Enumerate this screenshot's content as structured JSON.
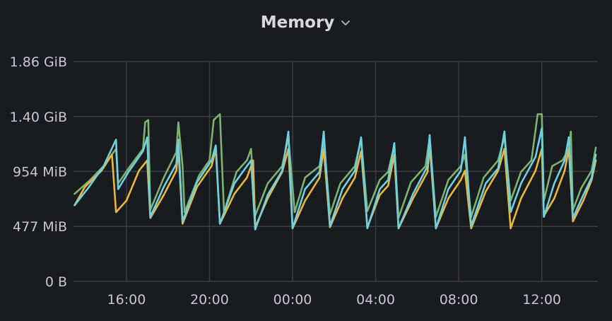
{
  "panel": {
    "title": "Memory",
    "menu_icon": "chevron-down-icon"
  },
  "colors": {
    "background": "#181b1f",
    "grid": "#3a3d43",
    "text": "#c7c7d3",
    "title": "#d8d9da"
  },
  "chart_data": {
    "type": "line",
    "title": "Memory",
    "xlabel": "",
    "ylabel": "",
    "grid": true,
    "legend": "none",
    "y_unit": "MiB",
    "ylim": [
      0,
      1907
    ],
    "y_ticks": [
      {
        "value": 0,
        "label": "0 B"
      },
      {
        "value": 477,
        "label": "477 MiB"
      },
      {
        "value": 954,
        "label": "954 MiB"
      },
      {
        "value": 1430,
        "label": "1.40 GiB"
      },
      {
        "value": 1907,
        "label": "1.86 GiB"
      }
    ],
    "x_unit": "hour",
    "xlim": [
      13.45,
      14.7
    ],
    "x_ticks": [
      {
        "value": 16,
        "label": "16:00"
      },
      {
        "value": 20,
        "label": "20:00"
      },
      {
        "value": 24,
        "label": "00:00"
      },
      {
        "value": 28,
        "label": "04:00"
      },
      {
        "value": 32,
        "label": "08:00"
      },
      {
        "value": 36,
        "label": "12:00"
      }
    ],
    "series": [
      {
        "color": "#7eb26d",
        "points": [
          [
            13.5,
            760
          ],
          [
            14.2,
            870
          ],
          [
            14.9,
            1000
          ],
          [
            15.5,
            1150
          ],
          [
            15.6,
            850
          ],
          [
            16.1,
            980
          ],
          [
            16.8,
            1150
          ],
          [
            16.9,
            1380
          ],
          [
            17.05,
            1400
          ],
          [
            17.15,
            620
          ],
          [
            17.8,
            900
          ],
          [
            18.4,
            1120
          ],
          [
            18.5,
            1380
          ],
          [
            18.7,
            1000
          ],
          [
            18.8,
            600
          ],
          [
            19.5,
            920
          ],
          [
            20.0,
            1050
          ],
          [
            20.2,
            1400
          ],
          [
            20.5,
            1450
          ],
          [
            20.7,
            600
          ],
          [
            21.3,
            950
          ],
          [
            21.8,
            1050
          ],
          [
            22.0,
            1150
          ],
          [
            22.2,
            570
          ],
          [
            22.8,
            850
          ],
          [
            23.5,
            1000
          ],
          [
            23.8,
            1250
          ],
          [
            24.1,
            600
          ],
          [
            24.6,
            900
          ],
          [
            25.3,
            1000
          ],
          [
            25.5,
            1230
          ],
          [
            25.8,
            580
          ],
          [
            26.3,
            850
          ],
          [
            27.0,
            1000
          ],
          [
            27.3,
            1230
          ],
          [
            27.6,
            610
          ],
          [
            28.2,
            880
          ],
          [
            28.6,
            950
          ],
          [
            28.9,
            1180
          ],
          [
            29.1,
            550
          ],
          [
            29.7,
            860
          ],
          [
            30.4,
            1000
          ],
          [
            30.6,
            1250
          ],
          [
            30.9,
            560
          ],
          [
            31.5,
            880
          ],
          [
            32.1,
            1000
          ],
          [
            32.3,
            1100
          ],
          [
            32.6,
            560
          ],
          [
            33.2,
            900
          ],
          [
            33.9,
            1050
          ],
          [
            34.2,
            1250
          ],
          [
            34.5,
            700
          ],
          [
            35.0,
            950
          ],
          [
            35.5,
            1050
          ],
          [
            35.8,
            1450
          ],
          [
            36.0,
            1450
          ],
          [
            36.1,
            700
          ],
          [
            36.5,
            1000
          ],
          [
            37.0,
            1050
          ],
          [
            37.3,
            1150
          ],
          [
            37.4,
            1300
          ],
          [
            37.5,
            620
          ],
          [
            37.9,
            810
          ],
          [
            38.4,
            960
          ],
          [
            38.6,
            1160
          ]
        ]
      },
      {
        "color": "#eab839",
        "points": [
          [
            13.5,
            660
          ],
          [
            14.0,
            820
          ],
          [
            14.8,
            960
          ],
          [
            15.3,
            1100
          ],
          [
            15.5,
            600
          ],
          [
            16.0,
            700
          ],
          [
            16.6,
            960
          ],
          [
            17.0,
            1050
          ],
          [
            17.15,
            550
          ],
          [
            17.8,
            750
          ],
          [
            18.4,
            960
          ],
          [
            18.5,
            1150
          ],
          [
            18.7,
            500
          ],
          [
            19.4,
            820
          ],
          [
            20.1,
            1000
          ],
          [
            20.3,
            1150
          ],
          [
            20.5,
            500
          ],
          [
            21.2,
            760
          ],
          [
            21.8,
            900
          ],
          [
            22.1,
            1050
          ],
          [
            22.2,
            470
          ],
          [
            22.8,
            720
          ],
          [
            23.5,
            950
          ],
          [
            23.8,
            1150
          ],
          [
            24.0,
            460
          ],
          [
            24.6,
            700
          ],
          [
            25.3,
            900
          ],
          [
            25.5,
            1150
          ],
          [
            25.8,
            470
          ],
          [
            26.4,
            720
          ],
          [
            27.0,
            900
          ],
          [
            27.3,
            1130
          ],
          [
            27.6,
            470
          ],
          [
            28.2,
            750
          ],
          [
            28.6,
            830
          ],
          [
            28.9,
            1100
          ],
          [
            29.1,
            460
          ],
          [
            29.8,
            720
          ],
          [
            30.5,
            950
          ],
          [
            30.6,
            1180
          ],
          [
            30.9,
            460
          ],
          [
            31.5,
            720
          ],
          [
            32.1,
            880
          ],
          [
            32.3,
            960
          ],
          [
            32.6,
            460
          ],
          [
            33.3,
            780
          ],
          [
            33.9,
            960
          ],
          [
            34.2,
            1150
          ],
          [
            34.5,
            460
          ],
          [
            35.0,
            720
          ],
          [
            35.7,
            960
          ],
          [
            36.0,
            1150
          ],
          [
            36.1,
            570
          ],
          [
            36.6,
            720
          ],
          [
            37.1,
            960
          ],
          [
            37.3,
            1150
          ],
          [
            37.5,
            520
          ],
          [
            38.0,
            700
          ],
          [
            38.4,
            880
          ],
          [
            38.6,
            1050
          ]
        ]
      },
      {
        "color": "#6ed0e0",
        "points": [
          [
            13.5,
            660
          ],
          [
            14.2,
            820
          ],
          [
            14.9,
            1000
          ],
          [
            15.5,
            1230
          ],
          [
            15.6,
            800
          ],
          [
            16.1,
            950
          ],
          [
            16.8,
            1130
          ],
          [
            17.0,
            1250
          ],
          [
            17.15,
            560
          ],
          [
            17.8,
            820
          ],
          [
            18.4,
            1020
          ],
          [
            18.5,
            1230
          ],
          [
            18.7,
            520
          ],
          [
            19.4,
            860
          ],
          [
            20.1,
            1050
          ],
          [
            20.3,
            1180
          ],
          [
            20.5,
            500
          ],
          [
            21.2,
            850
          ],
          [
            21.8,
            1000
          ],
          [
            22.0,
            1050
          ],
          [
            22.2,
            450
          ],
          [
            22.8,
            750
          ],
          [
            23.5,
            960
          ],
          [
            23.8,
            1300
          ],
          [
            24.0,
            460
          ],
          [
            24.6,
            800
          ],
          [
            25.3,
            950
          ],
          [
            25.5,
            1300
          ],
          [
            25.8,
            480
          ],
          [
            26.4,
            800
          ],
          [
            27.0,
            960
          ],
          [
            27.3,
            1250
          ],
          [
            27.6,
            460
          ],
          [
            28.2,
            800
          ],
          [
            28.6,
            880
          ],
          [
            28.9,
            1200
          ],
          [
            29.1,
            460
          ],
          [
            29.8,
            760
          ],
          [
            30.5,
            1000
          ],
          [
            30.6,
            1270
          ],
          [
            30.9,
            460
          ],
          [
            31.5,
            800
          ],
          [
            32.1,
            960
          ],
          [
            32.3,
            1250
          ],
          [
            32.6,
            480
          ],
          [
            33.3,
            850
          ],
          [
            33.9,
            980
          ],
          [
            34.2,
            1300
          ],
          [
            34.5,
            600
          ],
          [
            35.0,
            850
          ],
          [
            35.7,
            1080
          ],
          [
            36.0,
            1330
          ],
          [
            36.1,
            560
          ],
          [
            36.6,
            850
          ],
          [
            37.1,
            1050
          ],
          [
            37.3,
            1250
          ],
          [
            37.5,
            550
          ],
          [
            38.0,
            750
          ],
          [
            38.4,
            900
          ],
          [
            38.6,
            1100
          ]
        ]
      }
    ]
  }
}
